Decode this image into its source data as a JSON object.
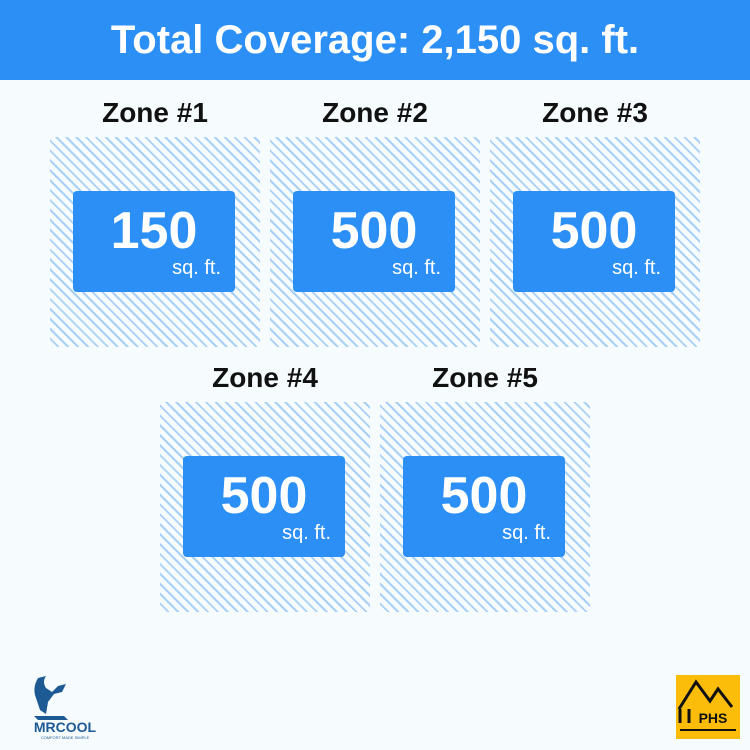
{
  "header": {
    "title": "Total Coverage: 2,150 sq. ft."
  },
  "zones": [
    {
      "label": "Zone #1",
      "value": "150",
      "unit": "sq. ft."
    },
    {
      "label": "Zone #2",
      "value": "500",
      "unit": "sq. ft."
    },
    {
      "label": "Zone #3",
      "value": "500",
      "unit": "sq. ft."
    },
    {
      "label": "Zone #4",
      "value": "500",
      "unit": "sq. ft."
    },
    {
      "label": "Zone #5",
      "value": "500",
      "unit": "sq. ft."
    }
  ],
  "logos": {
    "left": "MRCOOL",
    "left_tagline": "COMFORT MADE SIMPLE",
    "right": "PHS"
  },
  "colors": {
    "accent": "#2b8ff6",
    "hatch": "#a9d1f7",
    "phs": "#fbbd0a"
  }
}
